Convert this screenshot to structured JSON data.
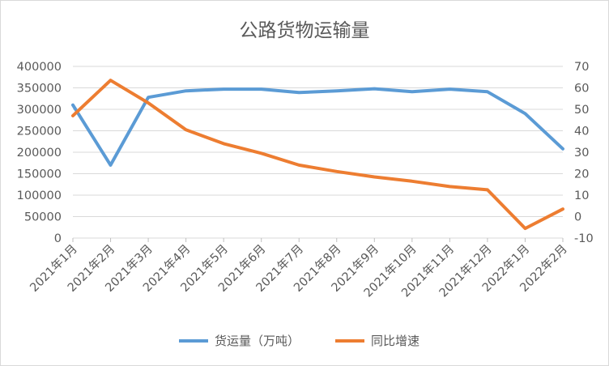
{
  "chart_data": {
    "type": "line",
    "title": "公路货物运输量",
    "categories": [
      "2021年1月",
      "2021年2月",
      "2021年3月",
      "2021年4月",
      "2021年5月",
      "2021年6月",
      "2021年7月",
      "2021年8月",
      "2021年9月",
      "2021年10月",
      "2021年11月",
      "2021年12月",
      "2022年1月",
      "2022年2月"
    ],
    "y_left": {
      "ylim": [
        0,
        400000
      ],
      "ticks": [
        "0",
        "50000",
        "100000",
        "150000",
        "200000",
        "250000",
        "300000",
        "350000",
        "400000"
      ]
    },
    "y_right": {
      "ylim": [
        -10,
        70
      ],
      "ticks": [
        "-10",
        "0",
        "10",
        "20",
        "30",
        "40",
        "50",
        "60",
        "70"
      ]
    },
    "series": [
      {
        "name": "货运量（万吨）",
        "axis": "left",
        "color": "#5b9bd5",
        "values": [
          310000,
          170000,
          328000,
          343000,
          347000,
          347000,
          339000,
          343000,
          348000,
          341000,
          347000,
          341000,
          290000,
          208000
        ]
      },
      {
        "name": "同比增速",
        "axis": "right",
        "color": "#ed7d31",
        "values": [
          47,
          63.5,
          53,
          40.5,
          34,
          29.5,
          24,
          21,
          18.5,
          16.5,
          14,
          12.5,
          -5.5,
          3.5
        ]
      }
    ],
    "grid": true,
    "legend": "bottom"
  }
}
